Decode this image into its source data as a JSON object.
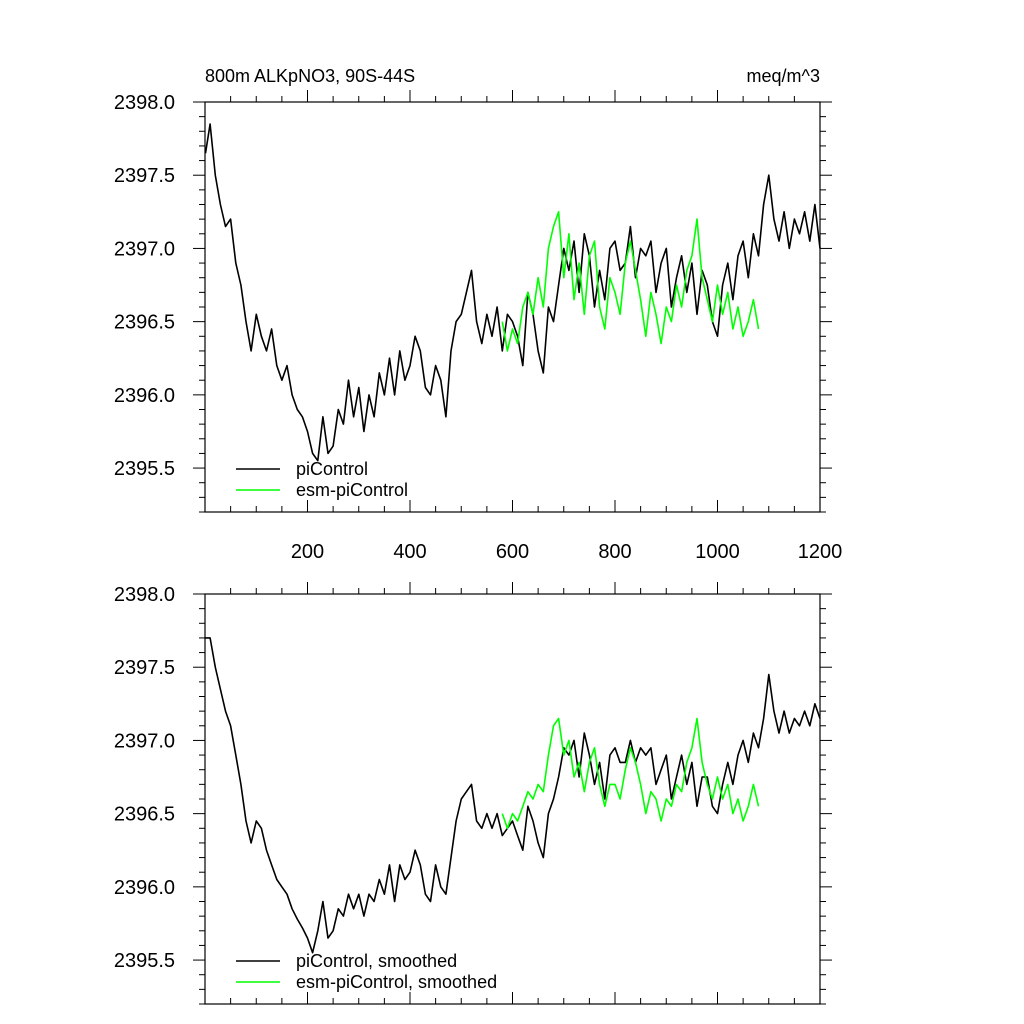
{
  "chart_data": [
    {
      "type": "line",
      "title": "800m ALKpNO3, 90S-44S",
      "units": "meq/m^3",
      "xlim": [
        0,
        1200
      ],
      "ylim": [
        2395.2,
        2398.0
      ],
      "xticks": [
        200,
        400,
        600,
        800,
        1000,
        1200
      ],
      "yticks": [
        2395.5,
        2396.0,
        2396.5,
        2397.0,
        2397.5,
        2398.0
      ],
      "ytick_labels": [
        "2395.5",
        "2396.0",
        "2396.5",
        "2397.0",
        "2397.5",
        "2398.0"
      ],
      "xtick_labels": [
        "200",
        "400",
        "600",
        "800",
        "1000",
        "1200"
      ],
      "show_xtick_labels": true,
      "legend_position": "bottom-left",
      "series": [
        {
          "name": "piControl",
          "color": "#000000",
          "x": [
            1,
            10,
            20,
            30,
            40,
            50,
            60,
            70,
            80,
            90,
            100,
            110,
            120,
            130,
            140,
            150,
            160,
            170,
            180,
            190,
            200,
            210,
            220,
            230,
            240,
            250,
            260,
            270,
            280,
            290,
            300,
            310,
            320,
            330,
            340,
            350,
            360,
            370,
            380,
            390,
            400,
            410,
            420,
            430,
            440,
            450,
            460,
            470,
            480,
            490,
            500,
            510,
            520,
            530,
            540,
            550,
            560,
            570,
            580,
            590,
            600,
            610,
            620,
            630,
            640,
            650,
            660,
            670,
            680,
            690,
            700,
            710,
            720,
            730,
            740,
            750,
            760,
            770,
            780,
            790,
            800,
            810,
            820,
            830,
            840,
            850,
            860,
            870,
            880,
            890,
            900,
            910,
            920,
            930,
            940,
            950,
            960,
            970,
            980,
            990,
            1000,
            1010,
            1020,
            1030,
            1040,
            1050,
            1060,
            1070,
            1080,
            1090,
            1100,
            1110,
            1120,
            1130,
            1140,
            1150,
            1160,
            1170,
            1180,
            1190,
            1200
          ],
          "values": [
            2397.65,
            2397.85,
            2397.5,
            2397.3,
            2397.15,
            2397.2,
            2396.9,
            2396.75,
            2396.5,
            2396.3,
            2396.55,
            2396.4,
            2396.3,
            2396.45,
            2396.2,
            2396.1,
            2396.2,
            2396.0,
            2395.9,
            2395.85,
            2395.75,
            2395.6,
            2395.55,
            2395.85,
            2395.6,
            2395.65,
            2395.9,
            2395.8,
            2396.1,
            2395.85,
            2396.05,
            2395.75,
            2396.0,
            2395.85,
            2396.15,
            2396.0,
            2396.25,
            2396.0,
            2396.3,
            2396.1,
            2396.2,
            2396.4,
            2396.3,
            2396.05,
            2396.0,
            2396.2,
            2396.1,
            2395.85,
            2396.3,
            2396.5,
            2396.55,
            2396.7,
            2396.85,
            2396.5,
            2396.35,
            2396.55,
            2396.4,
            2396.6,
            2396.3,
            2396.55,
            2396.5,
            2396.4,
            2396.2,
            2396.7,
            2396.55,
            2396.3,
            2396.15,
            2396.6,
            2396.5,
            2396.75,
            2397.0,
            2396.85,
            2397.05,
            2396.7,
            2397.1,
            2396.95,
            2396.6,
            2396.85,
            2396.65,
            2397.0,
            2397.05,
            2396.85,
            2396.9,
            2397.15,
            2396.8,
            2397.0,
            2396.95,
            2397.05,
            2396.7,
            2396.9,
            2397.0,
            2396.6,
            2396.8,
            2396.95,
            2396.7,
            2396.9,
            2396.55,
            2396.85,
            2396.75,
            2396.5,
            2396.4,
            2396.75,
            2396.9,
            2396.65,
            2396.95,
            2397.05,
            2396.8,
            2397.1,
            2396.95,
            2397.3,
            2397.5,
            2397.2,
            2397.05,
            2397.25,
            2397.0,
            2397.2,
            2397.1,
            2397.25,
            2397.05,
            2397.3,
            2397.0
          ]
        },
        {
          "name": "esm-piControl",
          "color": "#00ff00",
          "x": [
            580,
            590,
            600,
            610,
            620,
            630,
            640,
            650,
            660,
            670,
            680,
            690,
            700,
            710,
            720,
            730,
            740,
            750,
            760,
            770,
            780,
            790,
            800,
            810,
            820,
            830,
            840,
            850,
            860,
            870,
            880,
            890,
            900,
            910,
            920,
            930,
            940,
            950,
            960,
            970,
            980,
            990,
            1000,
            1010,
            1020,
            1030,
            1040,
            1050,
            1060,
            1070,
            1080
          ],
          "values": [
            2396.5,
            2396.3,
            2396.45,
            2396.35,
            2396.6,
            2396.7,
            2396.55,
            2396.8,
            2396.6,
            2397.0,
            2397.15,
            2397.25,
            2396.8,
            2397.1,
            2396.65,
            2396.9,
            2396.55,
            2396.95,
            2397.05,
            2396.6,
            2396.45,
            2396.8,
            2396.7,
            2396.55,
            2396.9,
            2397.05,
            2396.85,
            2396.65,
            2396.4,
            2396.7,
            2396.55,
            2396.35,
            2396.6,
            2396.5,
            2396.75,
            2396.6,
            2396.85,
            2396.95,
            2397.2,
            2396.8,
            2396.65,
            2396.5,
            2396.75,
            2396.55,
            2396.7,
            2396.45,
            2396.6,
            2396.4,
            2396.5,
            2396.65,
            2396.45
          ]
        }
      ]
    },
    {
      "type": "line",
      "title": "",
      "units": "",
      "xlim": [
        0,
        1200
      ],
      "ylim": [
        2395.2,
        2398.0
      ],
      "xticks": [
        200,
        400,
        600,
        800,
        1000,
        1200
      ],
      "yticks": [
        2395.5,
        2396.0,
        2396.5,
        2397.0,
        2397.5,
        2398.0
      ],
      "ytick_labels": [
        "2395.5",
        "2396.0",
        "2396.5",
        "2397.0",
        "2397.5",
        "2398.0"
      ],
      "xtick_labels": [],
      "show_xtick_labels": false,
      "legend_position": "bottom-left",
      "series": [
        {
          "name": "piControl, smoothed",
          "color": "#000000",
          "x": [
            1,
            10,
            20,
            30,
            40,
            50,
            60,
            70,
            80,
            90,
            100,
            110,
            120,
            130,
            140,
            150,
            160,
            170,
            180,
            190,
            200,
            210,
            220,
            230,
            240,
            250,
            260,
            270,
            280,
            290,
            300,
            310,
            320,
            330,
            340,
            350,
            360,
            370,
            380,
            390,
            400,
            410,
            420,
            430,
            440,
            450,
            460,
            470,
            480,
            490,
            500,
            510,
            520,
            530,
            540,
            550,
            560,
            570,
            580,
            590,
            600,
            610,
            620,
            630,
            640,
            650,
            660,
            670,
            680,
            690,
            700,
            710,
            720,
            730,
            740,
            750,
            760,
            770,
            780,
            790,
            800,
            810,
            820,
            830,
            840,
            850,
            860,
            870,
            880,
            890,
            900,
            910,
            920,
            930,
            940,
            950,
            960,
            970,
            980,
            990,
            1000,
            1010,
            1020,
            1030,
            1040,
            1050,
            1060,
            1070,
            1080,
            1090,
            1100,
            1110,
            1120,
            1130,
            1140,
            1150,
            1160,
            1170,
            1180,
            1190,
            1200
          ],
          "values": [
            2397.7,
            2397.7,
            2397.5,
            2397.35,
            2397.2,
            2397.1,
            2396.9,
            2396.7,
            2396.45,
            2396.3,
            2396.45,
            2396.4,
            2396.25,
            2396.15,
            2396.05,
            2396.0,
            2395.95,
            2395.85,
            2395.78,
            2395.72,
            2395.65,
            2395.55,
            2395.7,
            2395.9,
            2395.65,
            2395.7,
            2395.85,
            2395.8,
            2395.95,
            2395.85,
            2395.95,
            2395.8,
            2395.95,
            2395.9,
            2396.05,
            2395.95,
            2396.15,
            2395.9,
            2396.15,
            2396.05,
            2396.1,
            2396.25,
            2396.15,
            2395.95,
            2395.9,
            2396.15,
            2396.0,
            2395.95,
            2396.2,
            2396.45,
            2396.6,
            2396.65,
            2396.7,
            2396.45,
            2396.4,
            2396.5,
            2396.4,
            2396.5,
            2396.35,
            2396.4,
            2396.45,
            2396.35,
            2396.25,
            2396.55,
            2396.45,
            2396.3,
            2396.2,
            2396.5,
            2396.6,
            2396.75,
            2396.95,
            2396.9,
            2397.0,
            2396.75,
            2397.05,
            2396.9,
            2396.7,
            2396.85,
            2396.6,
            2396.9,
            2396.95,
            2396.85,
            2396.85,
            2397.0,
            2396.85,
            2396.95,
            2396.9,
            2396.95,
            2396.7,
            2396.8,
            2396.9,
            2396.6,
            2396.75,
            2396.9,
            2396.7,
            2396.85,
            2396.55,
            2396.75,
            2396.75,
            2396.55,
            2396.5,
            2396.7,
            2396.85,
            2396.7,
            2396.9,
            2397.0,
            2396.85,
            2397.05,
            2396.95,
            2397.15,
            2397.45,
            2397.2,
            2397.05,
            2397.2,
            2397.05,
            2397.15,
            2397.1,
            2397.2,
            2397.1,
            2397.25,
            2397.15
          ]
        },
        {
          "name": "esm-piControl, smoothed",
          "color": "#00ff00",
          "x": [
            580,
            590,
            600,
            610,
            620,
            630,
            640,
            650,
            660,
            670,
            680,
            690,
            700,
            710,
            720,
            730,
            740,
            750,
            760,
            770,
            780,
            790,
            800,
            810,
            820,
            830,
            840,
            850,
            860,
            870,
            880,
            890,
            900,
            910,
            920,
            930,
            940,
            950,
            960,
            970,
            980,
            990,
            1000,
            1010,
            1020,
            1030,
            1040,
            1050,
            1060,
            1070,
            1080
          ],
          "values": [
            2396.5,
            2396.4,
            2396.5,
            2396.45,
            2396.55,
            2396.65,
            2396.6,
            2396.7,
            2396.65,
            2396.9,
            2397.1,
            2397.15,
            2396.9,
            2397.0,
            2396.75,
            2396.85,
            2396.65,
            2396.85,
            2396.95,
            2396.7,
            2396.55,
            2396.7,
            2396.7,
            2396.6,
            2396.8,
            2396.95,
            2396.85,
            2396.7,
            2396.5,
            2396.65,
            2396.6,
            2396.45,
            2396.6,
            2396.55,
            2396.7,
            2396.65,
            2396.85,
            2396.95,
            2397.15,
            2396.85,
            2396.7,
            2396.6,
            2396.75,
            2396.6,
            2396.7,
            2396.5,
            2396.6,
            2396.45,
            2396.55,
            2396.7,
            2396.55
          ]
        }
      ]
    }
  ]
}
